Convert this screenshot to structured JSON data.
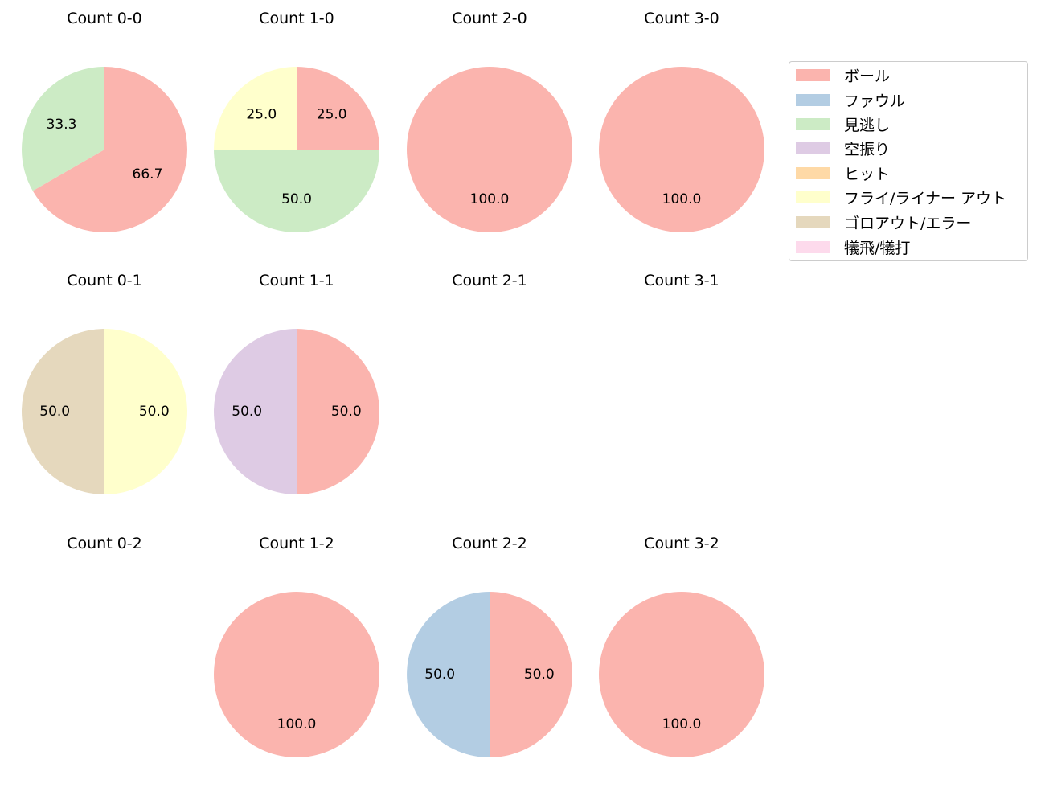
{
  "chart_data": {
    "type": "pie",
    "start_angle": "12 o'clock, clockwise",
    "categories": [
      "ボール",
      "ファウル",
      "見逃し",
      "空振り",
      "ヒット",
      "フライ/ライナー アウト",
      "ゴロアウト/エラー",
      "犠飛/犠打"
    ],
    "colors": [
      "#fbb4ae",
      "#b3cde3",
      "#ccebc5",
      "#decbe4",
      "#fed9a6",
      "#ffffcc",
      "#e5d8bd",
      "#fddaec"
    ],
    "legend": {
      "position": "top-right"
    },
    "charts": [
      {
        "title": "Count 0-0",
        "values": [
          66.7,
          0,
          33.3,
          0,
          0,
          0,
          0,
          0
        ],
        "labels": [
          "66.7",
          "",
          "33.3",
          "",
          "",
          "",
          "",
          ""
        ]
      },
      {
        "title": "Count 1-0",
        "values": [
          25.0,
          0,
          50.0,
          0,
          0,
          25.0,
          0,
          0
        ],
        "labels": [
          "25.0",
          "",
          "50.0",
          "",
          "",
          "25.0",
          "",
          ""
        ]
      },
      {
        "title": "Count 2-0",
        "values": [
          100.0,
          0,
          0,
          0,
          0,
          0,
          0,
          0
        ],
        "labels": [
          "100.0",
          "",
          "",
          "",
          "",
          "",
          "",
          ""
        ]
      },
      {
        "title": "Count 3-0",
        "values": [
          100.0,
          0,
          0,
          0,
          0,
          0,
          0,
          0
        ],
        "labels": [
          "100.0",
          "",
          "",
          "",
          "",
          "",
          "",
          ""
        ]
      },
      {
        "title": "Count 0-1",
        "values": [
          0,
          0,
          0,
          0,
          0,
          50.0,
          50.0,
          0
        ],
        "labels": [
          "",
          "",
          "",
          "",
          "",
          "50.0",
          "50.0",
          ""
        ]
      },
      {
        "title": "Count 1-1",
        "values": [
          50.0,
          0,
          0,
          50.0,
          0,
          0,
          0,
          0
        ],
        "labels": [
          "50.0",
          "",
          "",
          "50.0",
          "",
          "",
          "",
          ""
        ]
      },
      {
        "title": "Count 2-1",
        "values": [],
        "labels": []
      },
      {
        "title": "Count 3-1",
        "values": [],
        "labels": []
      },
      {
        "title": "Count 0-2",
        "values": [],
        "labels": []
      },
      {
        "title": "Count 1-2",
        "values": [
          100.0,
          0,
          0,
          0,
          0,
          0,
          0,
          0
        ],
        "labels": [
          "100.0",
          "",
          "",
          "",
          "",
          "",
          "",
          ""
        ]
      },
      {
        "title": "Count 2-2",
        "values": [
          50.0,
          50.0,
          0,
          0,
          0,
          0,
          0,
          0
        ],
        "labels": [
          "50.0",
          "50.0",
          "",
          "",
          "",
          "",
          "",
          ""
        ]
      },
      {
        "title": "Count 3-2",
        "values": [
          100.0,
          0,
          0,
          0,
          0,
          0,
          0,
          0
        ],
        "labels": [
          "100.0",
          "",
          "",
          "",
          "",
          "",
          "",
          ""
        ]
      }
    ]
  }
}
